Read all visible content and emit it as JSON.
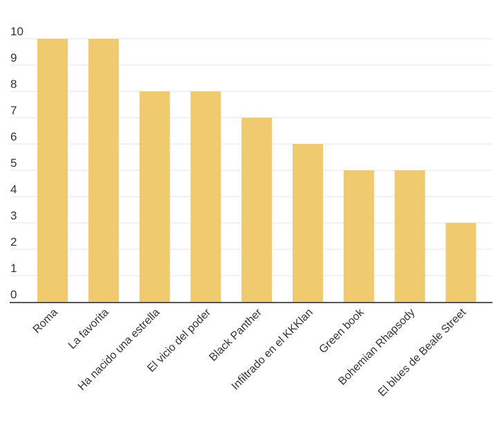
{
  "chart_data": {
    "type": "bar",
    "categories": [
      "Roma",
      "La favorita",
      "Ha nacido una estrella",
      "El vicio del poder",
      "Black Panther",
      "Infiltrado en el KKKlan",
      "Green book",
      "Bohemian Rhapsody",
      "El blues de Beale Street"
    ],
    "values": [
      10,
      10,
      8,
      8,
      7,
      6,
      5,
      5,
      3
    ],
    "yticks": [
      "0",
      "1",
      "2",
      "3",
      "4",
      "5",
      "6",
      "7",
      "8",
      "9",
      "10"
    ],
    "ylim": [
      0,
      10
    ],
    "grid": true,
    "bar_color": "#F0CA6E",
    "grid_color": "#e6e6e6",
    "axis_color": "#555555"
  }
}
